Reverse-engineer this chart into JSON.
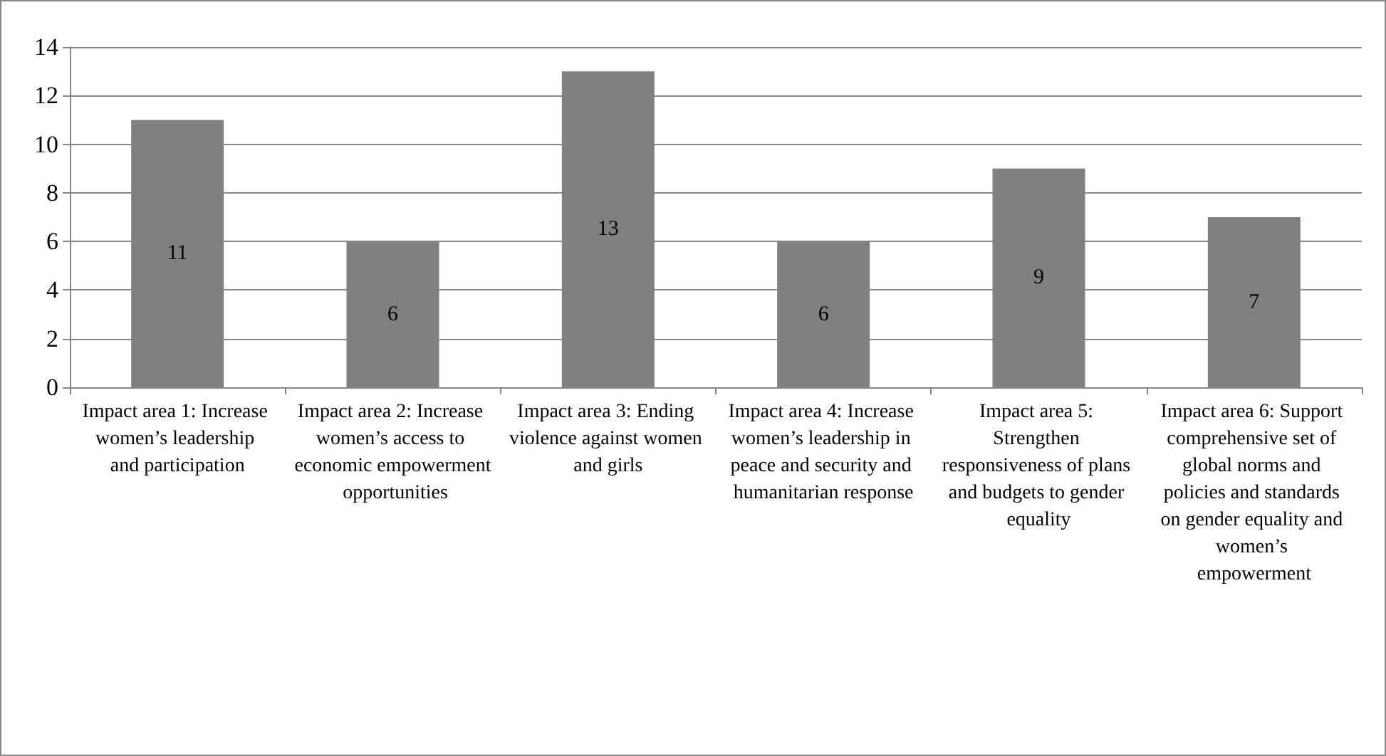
{
  "chart_data": {
    "type": "bar",
    "categories": [
      "Impact area 1: Increase women’s leadership and participation",
      "Impact area 2: Increase women’s access to economic empowerment opportunities",
      "Impact area 3: Ending violence against women and girls",
      "Impact area 4: Increase women’s leadership in peace and security and humanitarian response",
      "Impact area 5: Strengthen responsiveness of plans and budgets to gender equality",
      "Impact area 6: Support comprehensive set of global norms and policies and standards on gender equality and women’s empowerment"
    ],
    "values": [
      11,
      6,
      13,
      6,
      9,
      7
    ],
    "color": "#808080",
    "ylim": [
      0,
      14
    ],
    "yticks": [
      0,
      2,
      4,
      6,
      8,
      10,
      12,
      14
    ],
    "grid": "y",
    "data_labels": true
  }
}
